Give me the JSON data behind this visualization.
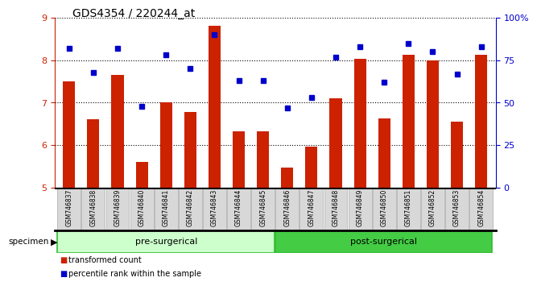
{
  "title": "GDS4354 / 220244_at",
  "categories": [
    "GSM746837",
    "GSM746838",
    "GSM746839",
    "GSM746840",
    "GSM746841",
    "GSM746842",
    "GSM746843",
    "GSM746844",
    "GSM746845",
    "GSM746846",
    "GSM746847",
    "GSM746848",
    "GSM746849",
    "GSM746850",
    "GSM746851",
    "GSM746852",
    "GSM746853",
    "GSM746854"
  ],
  "bar_values": [
    7.5,
    6.6,
    7.65,
    5.6,
    7.0,
    6.78,
    8.82,
    6.32,
    6.32,
    5.47,
    5.97,
    7.1,
    8.03,
    6.62,
    8.12,
    8.0,
    6.55,
    8.12
  ],
  "dot_values": [
    82,
    68,
    82,
    48,
    78,
    70,
    90,
    63,
    63,
    47,
    53,
    77,
    83,
    62,
    85,
    80,
    67,
    83
  ],
  "bar_color": "#cc2200",
  "dot_color": "#0000cc",
  "pre_surgical_count": 9,
  "post_surgical_count": 9,
  "pre_surgical_label": "pre-surgerical",
  "post_surgical_label": "post-surgerical",
  "pre_surgical_color": "#ccffcc",
  "post_surgical_color": "#44cc44",
  "ylim_left": [
    5,
    9
  ],
  "ylim_right": [
    0,
    100
  ],
  "yticks_left": [
    5,
    6,
    7,
    8,
    9
  ],
  "yticks_right": [
    0,
    25,
    50,
    75,
    100
  ],
  "ytick_labels_right": [
    "0",
    "25",
    "50",
    "75",
    "100%"
  ],
  "specimen_label": "specimen",
  "legend_items": [
    "transformed count",
    "percentile rank within the sample"
  ],
  "bar_width": 0.5,
  "label_fontsize": 7,
  "group_label_fontsize": 8,
  "title_fontsize": 10
}
